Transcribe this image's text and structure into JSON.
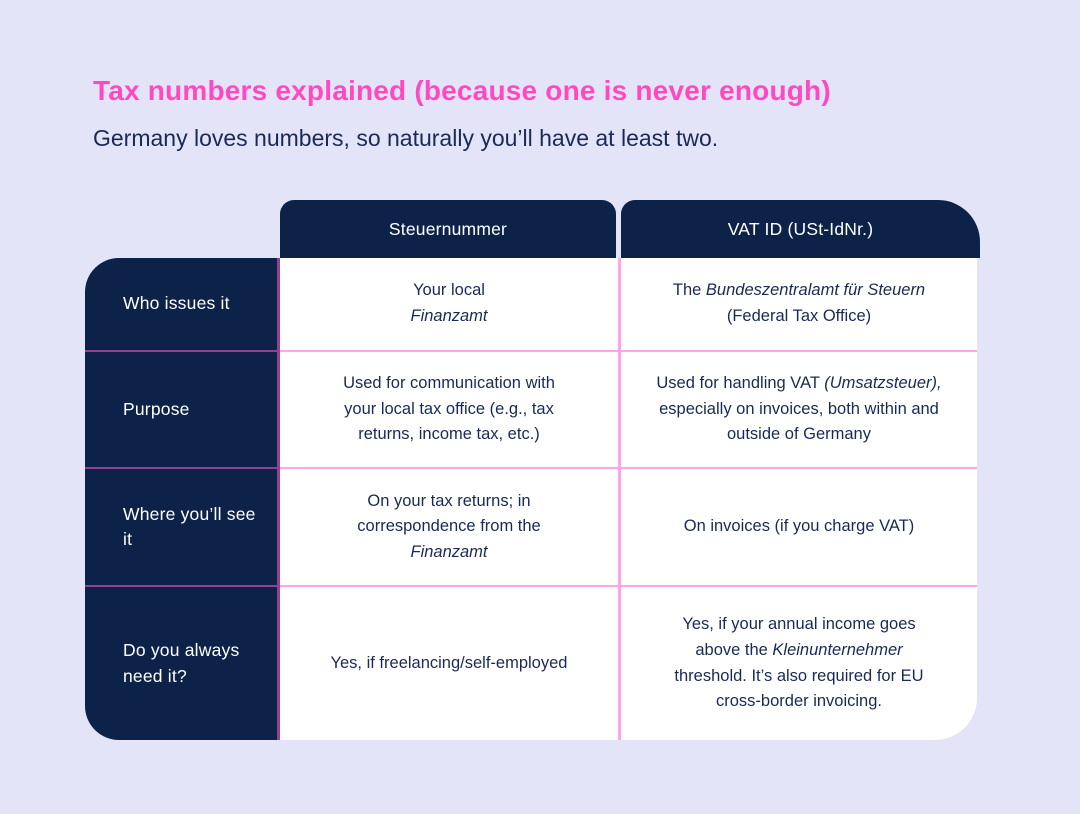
{
  "theme": {
    "bg": "#e4e4f9",
    "navy": "#0d2248",
    "pink": "#ff49c1",
    "grid_pink": "rgba(255,90,210,0.55)",
    "cell_text": "#182a55",
    "white": "#ffffff"
  },
  "header": {
    "title": "Tax numbers explained (because one is never enough)",
    "subtitle": "Germany loves numbers, so naturally you’ll have at least two."
  },
  "table": {
    "column_headers": [
      {
        "label": "Steuernummer"
      },
      {
        "label": "VAT ID (USt-IdNr.)"
      }
    ],
    "rows": [
      {
        "header": "Who issues it",
        "cells": [
          [
            {
              "text": "Your local"
            },
            {
              "break": true
            },
            {
              "text": "Finanzamt",
              "italic": true
            }
          ],
          [
            {
              "text": "The "
            },
            {
              "text": "Bundeszentralamt für Steuern",
              "italic": true
            },
            {
              "break": true
            },
            {
              "text": "(Federal Tax Office)"
            }
          ]
        ]
      },
      {
        "header": "Purpose",
        "cells": [
          [
            {
              "text": "Used for communication with"
            },
            {
              "break": true
            },
            {
              "text": "your local tax office (e.g., tax"
            },
            {
              "break": true
            },
            {
              "text": "returns, income tax, etc.)"
            }
          ],
          [
            {
              "text": "Used for handling VAT "
            },
            {
              "text": "(Umsatzsteuer),",
              "italic": true
            },
            {
              "break": true
            },
            {
              "text": "especially on invoices, both within and"
            },
            {
              "break": true
            },
            {
              "text": "outside of Germany"
            }
          ]
        ]
      },
      {
        "header": "Where you’ll see it",
        "cells": [
          [
            {
              "text": "On your tax returns; in"
            },
            {
              "break": true
            },
            {
              "text": "correspondence from the"
            },
            {
              "break": true
            },
            {
              "text": "Finanzamt",
              "italic": true
            }
          ],
          [
            {
              "text": "On invoices (if you charge VAT)"
            }
          ]
        ]
      },
      {
        "header": "Do you always need it?",
        "cells": [
          [
            {
              "text": "Yes, if freelancing/self-employed"
            }
          ],
          [
            {
              "text": "Yes, if your annual income goes"
            },
            {
              "break": true
            },
            {
              "text": "above the "
            },
            {
              "text": "Kleinunternehmer",
              "italic": true
            },
            {
              "break": true
            },
            {
              "text": "threshold. It’s also required for EU"
            },
            {
              "break": true
            },
            {
              "text": "cross-border invoicing."
            }
          ]
        ]
      }
    ]
  }
}
